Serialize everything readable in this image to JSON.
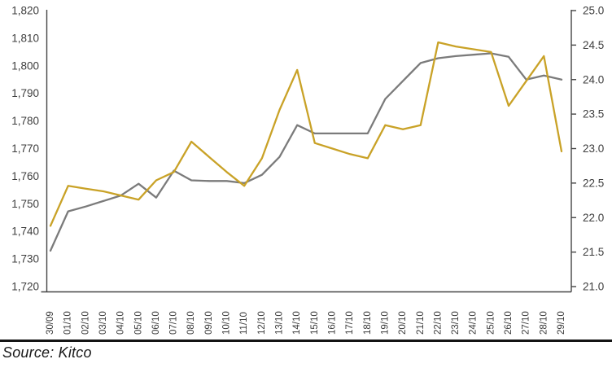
{
  "source_note": "Source: Kitco",
  "colors": {
    "yellow_line": "#C9A227",
    "gray_line": "#7B7B7B",
    "axis": "#454545",
    "tick_label": "#3D3D3D",
    "divider": "#141414",
    "background": "#FFFFFF"
  },
  "chart_data": {
    "type": "line",
    "title": "",
    "grid": false,
    "legend": "none",
    "categories": [
      "30/09",
      "01/10",
      "02/10",
      "03/10",
      "04/10",
      "05/10",
      "06/10",
      "07/10",
      "08/10",
      "09/10",
      "10/10",
      "11/10",
      "12/10",
      "13/10",
      "14/10",
      "15/10",
      "16/10",
      "17/10",
      "18/10",
      "19/10",
      "20/10",
      "21/10",
      "22/10",
      "23/10",
      "24/10",
      "25/10",
      "26/10",
      "27/10",
      "28/10",
      "29/10"
    ],
    "series": [
      {
        "name": "yellow-series-left-axis",
        "axis": "left",
        "color": "#C9A227",
        "values": [
          1742,
          1756.5,
          1755.5,
          1754.5,
          1753,
          1751.5,
          1758.5,
          1761.5,
          1772.5,
          1767,
          1761.5,
          1756.5,
          1766.5,
          1784,
          1798.5,
          1772,
          1770,
          1768,
          1766.5,
          1778.5,
          1777,
          1778.5,
          1808.5,
          1807,
          1806,
          1805,
          1785.5,
          1794.5,
          1803.5,
          1769
        ]
      },
      {
        "name": "gray-series-right-axis",
        "axis": "right",
        "color": "#7B7B7B",
        "values": [
          21.52,
          22.09,
          22.16,
          22.24,
          22.32,
          22.49,
          22.29,
          22.68,
          22.54,
          22.53,
          22.53,
          22.5,
          22.62,
          22.88,
          23.34,
          23.22,
          23.22,
          23.22,
          23.22,
          23.72,
          23.98,
          24.24,
          24.31,
          24.34,
          24.36,
          24.38,
          24.33,
          24.0,
          24.06,
          24.0
        ]
      }
    ],
    "left_axis": {
      "min": 1720,
      "max": 1820,
      "step": 10,
      "tick_labels": [
        "1,820",
        "1,810",
        "1,800",
        "1,790",
        "1,780",
        "1,770",
        "1,760",
        "1,750",
        "1,740",
        "1,730",
        "1,720"
      ]
    },
    "right_axis": {
      "min": 21.0,
      "max": 25.0,
      "step": 0.5,
      "tick_labels": [
        "25.0",
        "24.5",
        "24.0",
        "23.5",
        "23.0",
        "22.5",
        "22.0",
        "21.5",
        "21.0"
      ]
    }
  }
}
